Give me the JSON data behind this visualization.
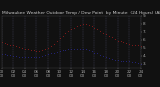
{
  "title": "Milwaukee Weather Outdoor Temp / Dew Point  by Minute  (24 Hours) (Alternate)",
  "bg_color": "#111111",
  "plot_bg_color": "#111111",
  "grid_color": "#555577",
  "temp_color": "#dd2222",
  "dew_color": "#3333cc",
  "x_min": 0,
  "x_max": 1440,
  "y_min": 25,
  "y_max": 90,
  "ytick_values": [
    30,
    40,
    50,
    60,
    70,
    80,
    90
  ],
  "ytick_labels": [
    "3.",
    "4.",
    "5.",
    "6.",
    "7.",
    "8.",
    "9."
  ],
  "num_vgrid_lines": 12,
  "title_color": "#cccccc",
  "tick_color": "#aaaaaa",
  "temp_data_x": [
    0,
    30,
    60,
    90,
    120,
    150,
    180,
    210,
    240,
    270,
    300,
    330,
    360,
    390,
    420,
    450,
    480,
    510,
    540,
    570,
    600,
    630,
    660,
    690,
    720,
    750,
    780,
    810,
    840,
    870,
    900,
    930,
    960,
    990,
    1020,
    1050,
    1080,
    1110,
    1140,
    1170,
    1200,
    1230,
    1260,
    1290,
    1320,
    1350,
    1380,
    1410,
    1440
  ],
  "temp_data_y": [
    57,
    56,
    55,
    54,
    53,
    52,
    51,
    50,
    49,
    48,
    47,
    47,
    46,
    46,
    47,
    48,
    50,
    52,
    55,
    58,
    62,
    65,
    68,
    71,
    73,
    75,
    77,
    78,
    79,
    79,
    78,
    77,
    75,
    73,
    71,
    69,
    67,
    65,
    63,
    61,
    59,
    58,
    57,
    56,
    55,
    54,
    54,
    53,
    52
  ],
  "dew_data_x": [
    0,
    30,
    60,
    90,
    120,
    150,
    180,
    210,
    240,
    270,
    300,
    330,
    360,
    390,
    420,
    450,
    480,
    510,
    540,
    570,
    600,
    630,
    660,
    690,
    720,
    750,
    780,
    810,
    840,
    870,
    900,
    930,
    960,
    990,
    1020,
    1050,
    1080,
    1110,
    1140,
    1170,
    1200,
    1230,
    1260,
    1290,
    1320,
    1350,
    1380,
    1410,
    1440
  ],
  "dew_data_y": [
    42,
    42,
    41,
    41,
    40,
    40,
    39,
    39,
    38,
    38,
    38,
    38,
    38,
    39,
    40,
    41,
    42,
    43,
    44,
    45,
    46,
    47,
    47,
    48,
    48,
    49,
    49,
    49,
    48,
    48,
    47,
    46,
    44,
    43,
    41,
    40,
    38,
    37,
    36,
    35,
    35,
    34,
    34,
    33,
    33,
    32,
    32,
    31,
    30
  ],
  "marker_size": 1.2,
  "title_fontsize": 3.2,
  "tick_fontsize": 3.0,
  "xtick_positions": [
    0,
    120,
    240,
    360,
    480,
    600,
    720,
    840,
    960,
    1080,
    1200,
    1320,
    1440
  ],
  "xtick_labels": [
    "00\n00",
    "02\n00",
    "04\n00",
    "06\n00",
    "08\n00",
    "10\n00",
    "12\n00",
    "14\n00",
    "16\n00",
    "18\n00",
    "20\n00",
    "22\n00",
    "24\n00"
  ]
}
